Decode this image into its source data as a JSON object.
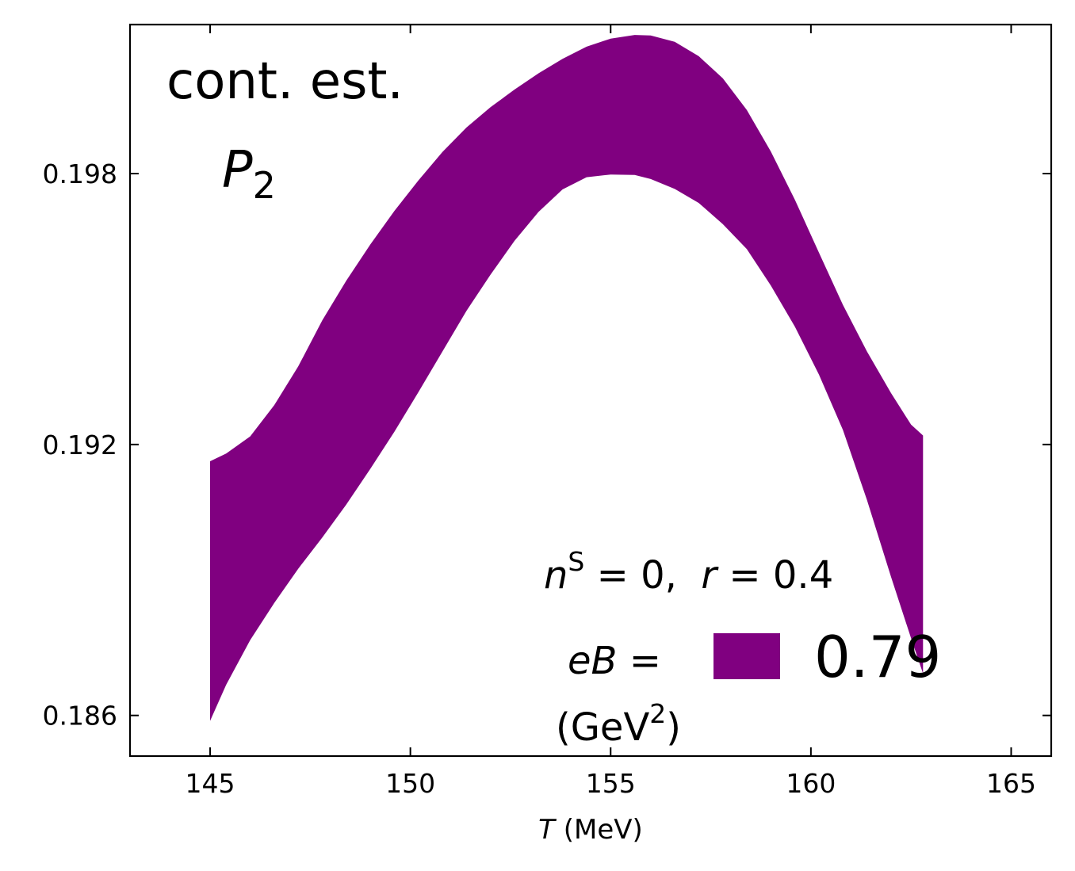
{
  "chart_data": {
    "type": "area",
    "title": "",
    "xlabel": {
      "var": "T",
      "unit": "(MeV)"
    },
    "ylabel": "",
    "xlim": [
      143.0,
      166.0
    ],
    "ylim": [
      0.1851,
      0.2013
    ],
    "xticks": [
      145,
      150,
      155,
      160,
      165
    ],
    "xtick_labels": [
      "145",
      "150",
      "155",
      "160",
      "165"
    ],
    "yticks": [
      0.186,
      0.192,
      0.198
    ],
    "ytick_labels": [
      "0.186",
      "0.192",
      "0.198"
    ],
    "grid": false,
    "legend_position": "lower-right",
    "series": [
      {
        "name": "0.79",
        "color": "#800080",
        "kind": "band",
        "x": [
          145.0,
          145.4,
          146.0,
          146.6,
          147.2,
          147.8,
          148.4,
          149.0,
          149.6,
          150.2,
          150.8,
          151.4,
          152.0,
          152.6,
          153.2,
          153.8,
          154.4,
          155.0,
          155.6,
          156.0,
          156.6,
          157.2,
          157.8,
          158.4,
          159.0,
          159.6,
          160.2,
          160.8,
          161.4,
          162.0,
          162.5,
          162.8
        ],
        "upper": [
          0.19163,
          0.1918,
          0.19218,
          0.19287,
          0.19373,
          0.19475,
          0.19563,
          0.19643,
          0.19717,
          0.19785,
          0.19848,
          0.19902,
          0.19947,
          0.19986,
          0.20022,
          0.20054,
          0.20081,
          0.20099,
          0.20107,
          0.20106,
          0.20092,
          0.2006,
          0.20011,
          0.19941,
          0.19849,
          0.19742,
          0.19625,
          0.19509,
          0.19406,
          0.19314,
          0.19244,
          0.1922
        ],
        "lower": [
          0.18588,
          0.18668,
          0.18767,
          0.18849,
          0.18925,
          0.18994,
          0.19067,
          0.19146,
          0.19228,
          0.19316,
          0.19406,
          0.19496,
          0.19576,
          0.19651,
          0.19715,
          0.19765,
          0.19792,
          0.19798,
          0.19797,
          0.19788,
          0.19766,
          0.19735,
          0.19688,
          0.19633,
          0.19552,
          0.19461,
          0.19355,
          0.19232,
          0.19077,
          0.18907,
          0.18771,
          0.18693
        ]
      }
    ],
    "annotations": {
      "line1": "cont. est.",
      "panel_label_main": "P",
      "panel_label_sub": "2",
      "params_n": "n",
      "params_n_sup": "S",
      "params_n_rest": " = 0,  ",
      "params_r": "r",
      "params_r_rest": " = 0.4",
      "legend_title_var": "eB",
      "legend_title_eq": " =",
      "legend_unit_open": "(GeV",
      "legend_unit_sup": "2",
      "legend_unit_close": ")"
    }
  }
}
